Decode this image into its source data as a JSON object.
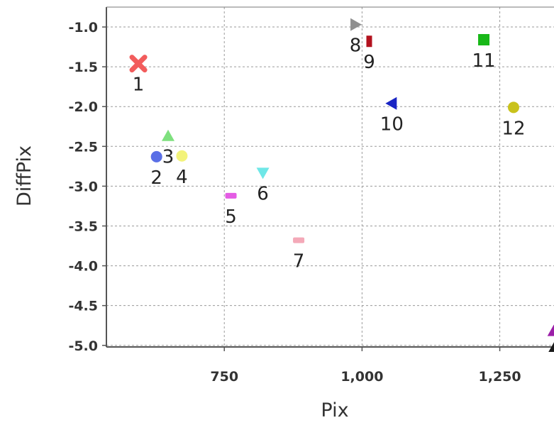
{
  "chart_data": {
    "type": "scatter",
    "title": "",
    "xlabel": "Pix",
    "ylabel": "DiffPix",
    "xlim": [
      536,
      1360
    ],
    "ylim": [
      -5.02,
      -0.75
    ],
    "x_ticks": [
      750,
      1000,
      1250
    ],
    "x_tick_labels": [
      "750",
      "1,000",
      "1,250"
    ],
    "y_ticks": [
      -1.0,
      -1.5,
      -2.0,
      -2.5,
      -3.0,
      -3.5,
      -4.0,
      -4.5,
      -5.0
    ],
    "y_tick_labels": [
      "-1.0",
      "-1.5",
      "-2.0",
      "-2.5",
      "-3.0",
      "-3.5",
      "-4.0",
      "-4.5",
      "-5.0"
    ],
    "grid": true,
    "legend": false,
    "points": [
      {
        "label": "1",
        "x": 594,
        "y": -1.46,
        "marker": "x",
        "color": "#f25c5c"
      },
      {
        "label": "2",
        "x": 627,
        "y": -2.63,
        "marker": "circle",
        "color": "#5a6fe6"
      },
      {
        "label": "3",
        "x": 648,
        "y": -2.37,
        "marker": "triangle-up",
        "color": "#7ee07e"
      },
      {
        "label": "4",
        "x": 673,
        "y": -2.62,
        "marker": "circle",
        "color": "#f3f37a"
      },
      {
        "label": "5",
        "x": 762,
        "y": -3.12,
        "marker": "rect",
        "color": "#e45ce4"
      },
      {
        "label": "6",
        "x": 820,
        "y": -2.83,
        "marker": "triangle-down",
        "color": "#6fe7e7"
      },
      {
        "label": "7",
        "x": 885,
        "y": -3.68,
        "marker": "rect",
        "color": "#f4a9b8"
      },
      {
        "label": "8",
        "x": 988,
        "y": -0.97,
        "marker": "triangle-right",
        "color": "#8f8f8f"
      },
      {
        "label": "9",
        "x": 1013,
        "y": -1.18,
        "marker": "rect-tall",
        "color": "#b3121e"
      },
      {
        "label": "10",
        "x": 1054,
        "y": -1.96,
        "marker": "triangle-left",
        "color": "#1a25c4"
      },
      {
        "label": "11",
        "x": 1221,
        "y": -1.16,
        "marker": "square",
        "color": "#18b818"
      },
      {
        "label": "12",
        "x": 1275,
        "y": -2.01,
        "marker": "circle",
        "color": "#c9c21c"
      },
      {
        "label": "",
        "x": 1348,
        "y": -4.82,
        "marker": "triangle-up",
        "color": "#9b1fa8"
      },
      {
        "label": "",
        "x": 1350,
        "y": -5.02,
        "marker": "triangle-up",
        "color": "#1a1a1a"
      }
    ]
  }
}
